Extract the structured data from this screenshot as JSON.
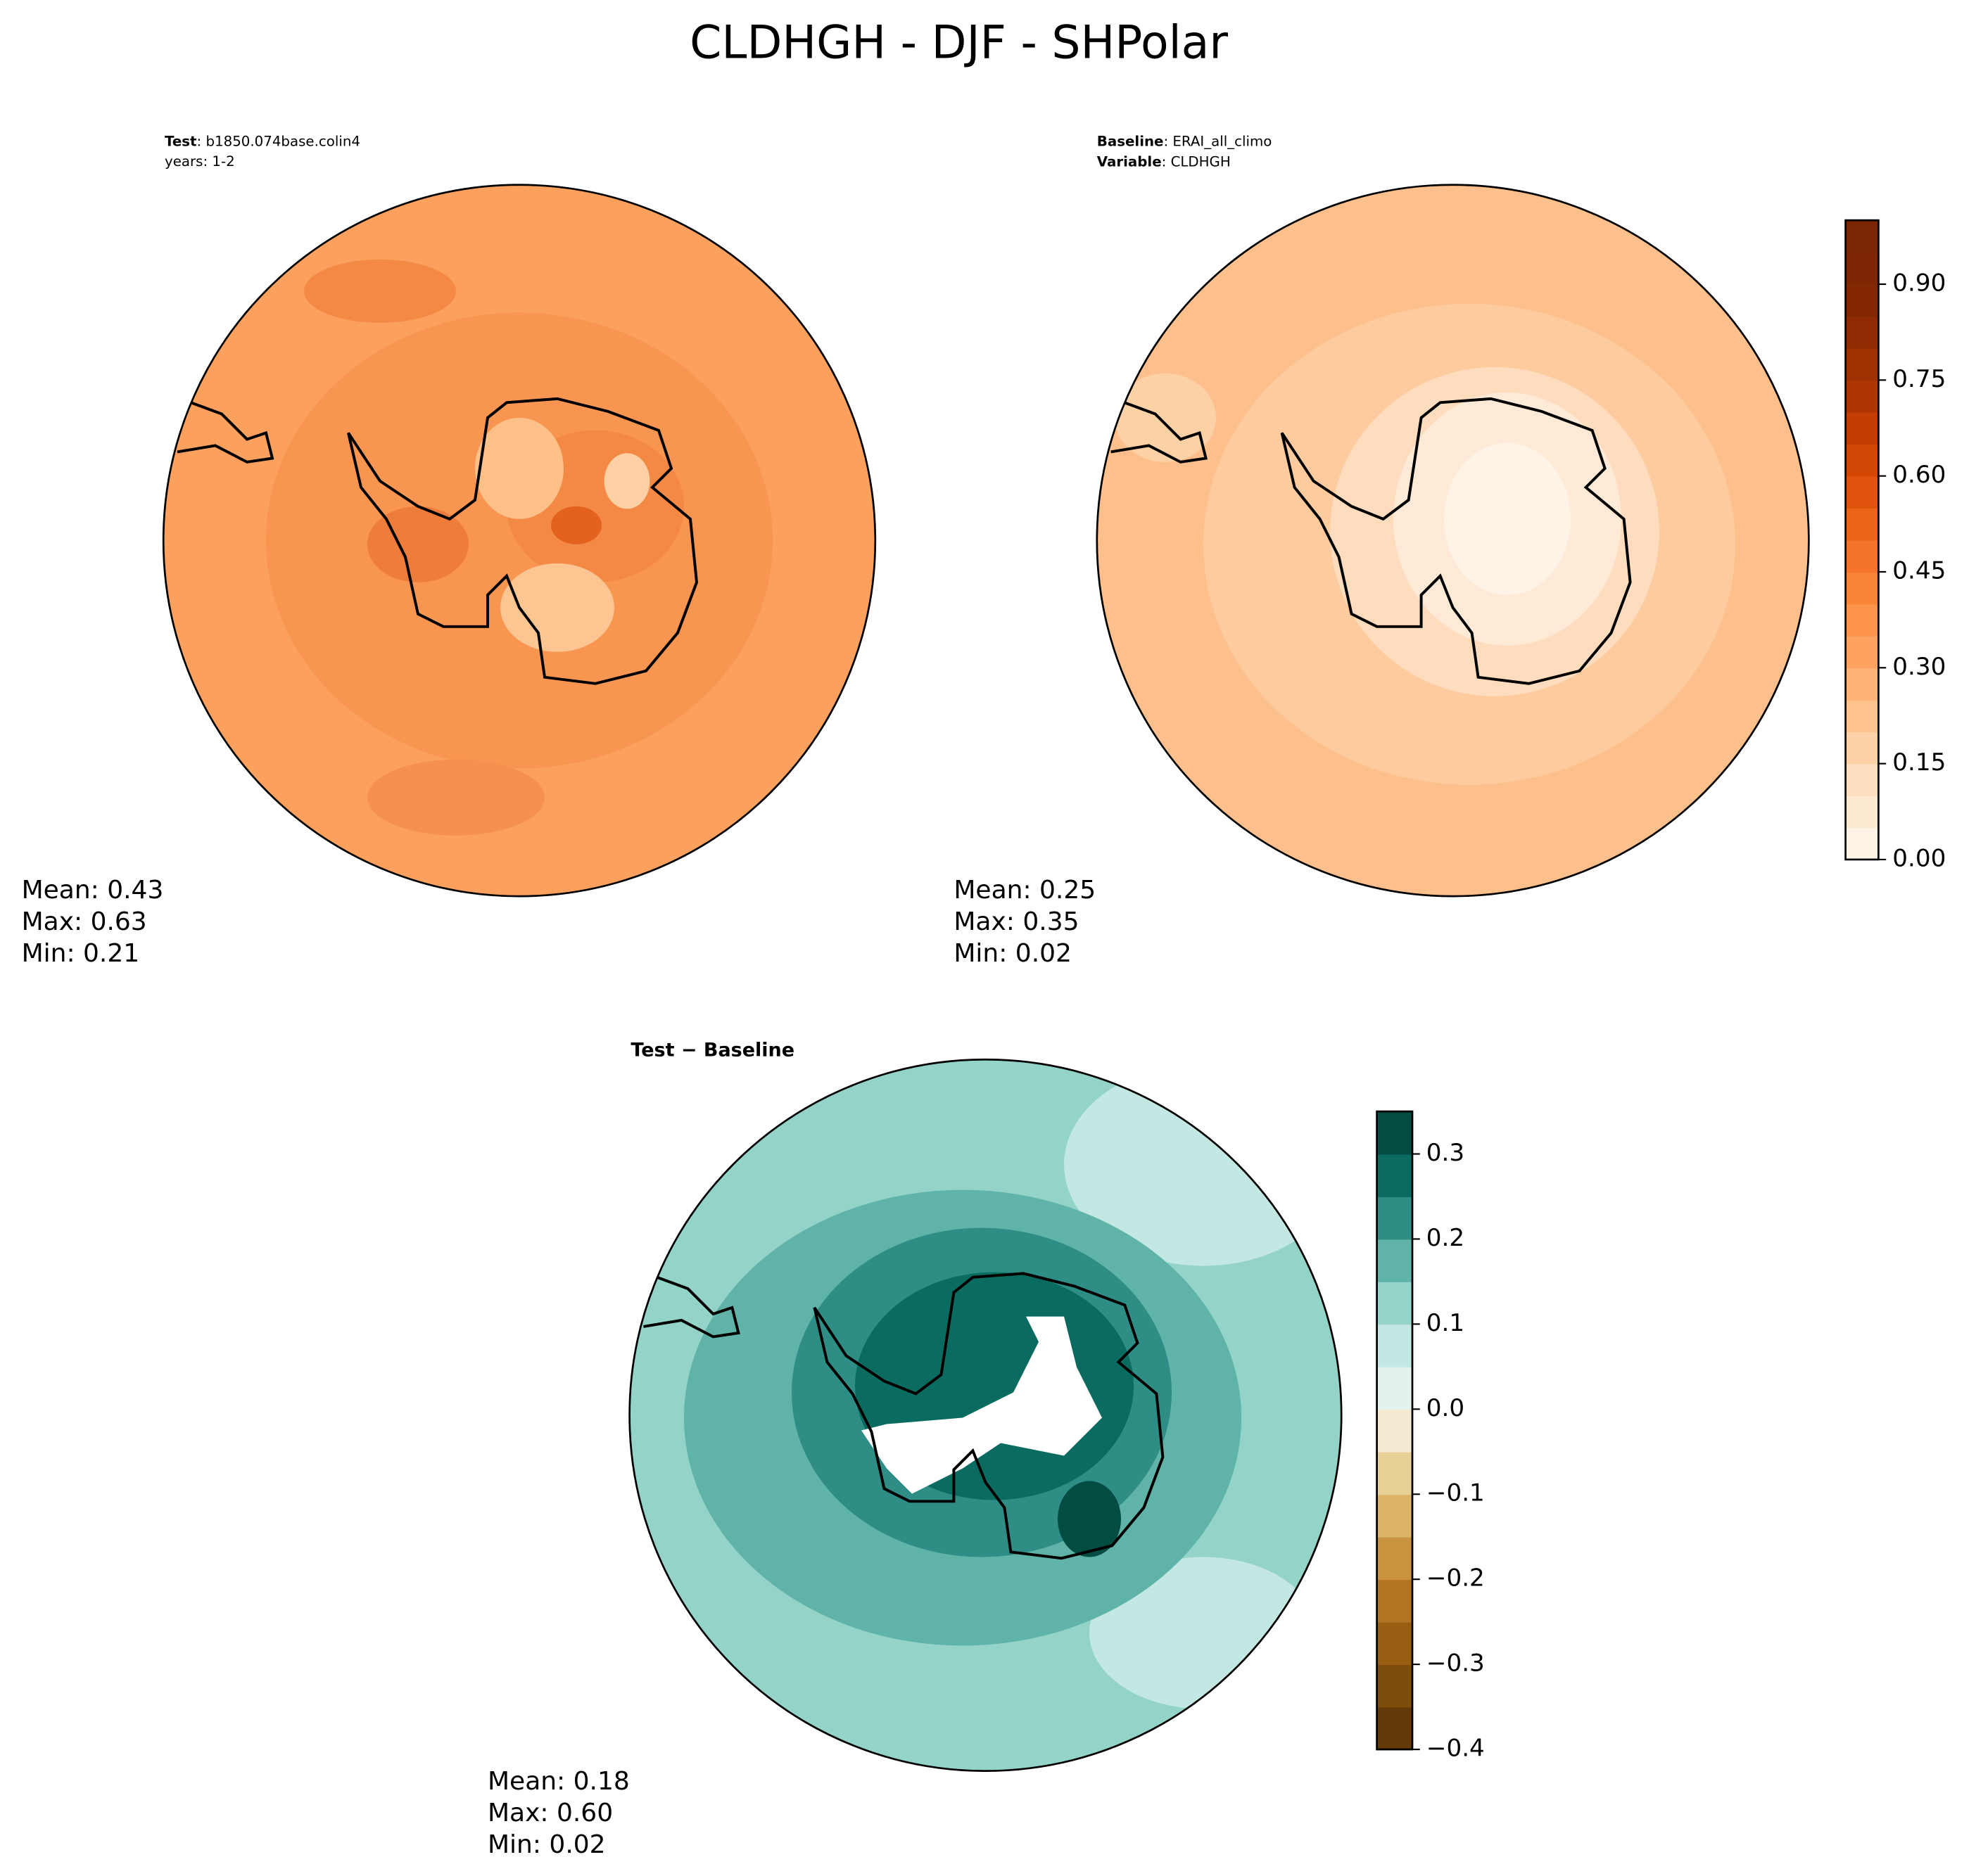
{
  "title": "CLDHGH - DJF - SHPolar",
  "panels": [
    {
      "heading": [
        {
          "label": "Test",
          "text": ": b1850.074base.colin4"
        }
      ],
      "subheading": "years: 1-2",
      "stats": [
        "Mean:  0.43",
        "Max:  0.63",
        "Min:  0.21"
      ]
    },
    {
      "heading": [
        {
          "label": "Baseline",
          "text": ": ERAI_all_climo"
        },
        {
          "label": "Variable",
          "text": ": CLDHGH"
        }
      ],
      "stats": [
        "Mean:  0.25",
        "Max:  0.35",
        "Min:  0.02"
      ]
    },
    {
      "heading": [
        {
          "label": "Test − Baseline"
        }
      ],
      "stats": [
        "Mean:  0.18",
        "Max:  0.60",
        "Min:  0.02"
      ]
    }
  ],
  "colorbars": [
    {
      "lim": [
        0,
        1
      ],
      "ticks": [
        {
          "value": 0,
          "label": "0.00"
        },
        {
          "value": 0.15,
          "label": "0.15"
        },
        {
          "value": 0.3,
          "label": "0.30"
        },
        {
          "value": 0.45,
          "label": "0.45"
        },
        {
          "value": 0.6,
          "label": "0.60"
        },
        {
          "value": 0.75,
          "label": "0.75"
        },
        {
          "value": 0.9,
          "label": "0.90"
        }
      ],
      "colors": [
        "#fff3e6",
        "#fee9d3",
        "#fddfc0",
        "#fdd2a7",
        "#fdc38d",
        "#fdb376",
        "#fda35f",
        "#fd9449",
        "#f98435",
        "#f3742a",
        "#ec641a",
        "#e1540d",
        "#d24704",
        "#c23e03",
        "#af3603",
        "#9e3002",
        "#8f2b03",
        "#842803",
        "#7f2704",
        "#7a2504"
      ]
    },
    {
      "lim": [
        -0.4,
        0.35
      ],
      "ticks": [
        {
          "value": -0.4,
          "label": "−0.4"
        },
        {
          "value": -0.3,
          "label": "−0.3"
        },
        {
          "value": -0.2,
          "label": "−0.2"
        },
        {
          "value": -0.1,
          "label": "−0.1"
        },
        {
          "value": 0,
          "label": "0.0"
        },
        {
          "value": 0.1,
          "label": "0.1"
        },
        {
          "value": 0.2,
          "label": "0.2"
        },
        {
          "value": 0.3,
          "label": "0.3"
        }
      ],
      "colors": [
        "#623a09",
        "#7e4c0c",
        "#9a5e13",
        "#b27323",
        "#c9923f",
        "#dbb468",
        "#e8d196",
        "#f3ead1",
        "#e3f2ef",
        "#c3e7e2",
        "#94d4c9",
        "#5fb3a8",
        "#2e8d84",
        "#0a6c60",
        "#024c41"
      ]
    }
  ]
}
